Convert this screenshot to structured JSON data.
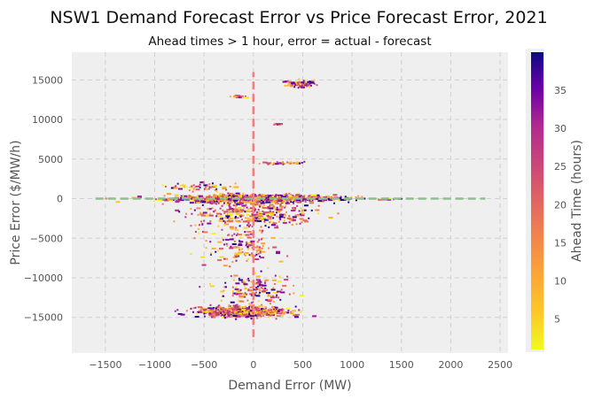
{
  "chart_data": {
    "type": "scatter",
    "title": "NSW1 Demand Forecast Error vs Price Forecast Error, 2021",
    "subtitle": "Ahead times > 1 hour, error = actual - forecast",
    "xlabel": "Demand Error (MW)",
    "ylabel": "Price Error ($/MW/h)",
    "colorbar_label": "Ahead Time (hours)",
    "xlim": [
      -1840,
      2580
    ],
    "ylim": [
      -19500,
      18500
    ],
    "x_ticks": [
      -1500,
      -1000,
      -500,
      0,
      500,
      1000,
      1500,
      2000,
      2500
    ],
    "y_ticks": [
      -15000,
      -10000,
      -5000,
      0,
      5000,
      10000,
      15000
    ],
    "x_tick_labels": [
      "−1500",
      "−1000",
      "−500",
      "0",
      "500",
      "1000",
      "1500",
      "2000",
      "2500"
    ],
    "y_tick_labels": [
      "−15000",
      "−10000",
      "−5000",
      "0",
      "5000",
      "10000",
      "15000"
    ],
    "colorbar_range": [
      1,
      40
    ],
    "colorbar_ticks": [
      5,
      10,
      15,
      20,
      25,
      30,
      35
    ],
    "colorbar_tick_labels": [
      "5",
      "10",
      "15",
      "20",
      "25",
      "30",
      "35"
    ],
    "colormap": "plasma_r",
    "grid": true,
    "reference_lines": [
      {
        "orientation": "vertical",
        "x": 0,
        "y_range": [
          -17500,
          16000
        ],
        "color": "#f08080",
        "style": "dashed"
      },
      {
        "orientation": "horizontal",
        "y": 0,
        "x_range": [
          -1600,
          2350
        ],
        "color": "#8fbf8f",
        "style": "dashed"
      }
    ],
    "clusters": [
      {
        "x_center": 0,
        "x_spread": 900,
        "y_center": 0,
        "y_spread": 600,
        "count": 700
      },
      {
        "x_center": 200,
        "x_spread": 1000,
        "y_center": 0,
        "y_spread": 250,
        "count": 350
      },
      {
        "x_center": 0,
        "x_spread": 700,
        "y_center": -1800,
        "y_spread": 2200,
        "count": 350
      },
      {
        "x_center": -100,
        "x_spread": 500,
        "y_center": -14300,
        "y_spread": 700,
        "count": 650
      },
      {
        "x_center": 0,
        "x_spread": 400,
        "y_center": -11500,
        "y_spread": 2200,
        "count": 150
      },
      {
        "x_center": -150,
        "x_spread": 400,
        "y_center": -6000,
        "y_spread": 3000,
        "count": 140
      },
      {
        "x_center": 480,
        "x_spread": 150,
        "y_center": 14500,
        "y_spread": 500,
        "count": 80
      },
      {
        "x_center": -150,
        "x_spread": 80,
        "y_center": 12900,
        "y_spread": 200,
        "count": 25
      },
      {
        "x_center": 300,
        "x_spread": 250,
        "y_center": 4500,
        "y_spread": 150,
        "count": 40
      },
      {
        "x_center": 250,
        "x_spread": 60,
        "y_center": 9400,
        "y_spread": 100,
        "count": 12
      },
      {
        "x_center": -500,
        "x_spread": 400,
        "y_center": 1500,
        "y_spread": 500,
        "count": 50
      }
    ],
    "colors": {
      "panel_bg": "#efefef",
      "grid": "#d0d0d0",
      "text": "#555555"
    }
  }
}
